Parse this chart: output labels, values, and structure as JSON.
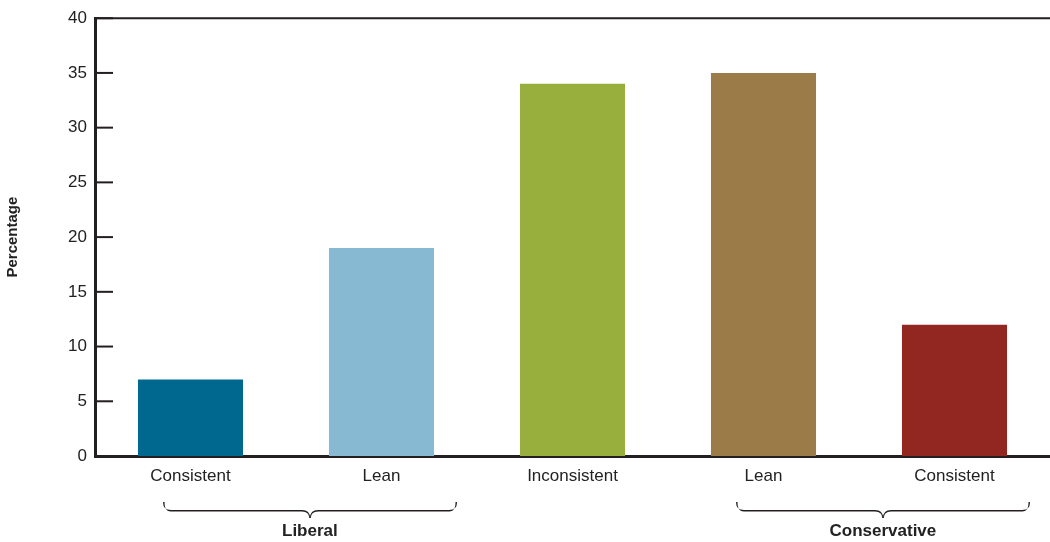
{
  "chart_data": {
    "type": "bar",
    "ylabel": "Percentage",
    "categories": [
      "Consistent",
      "Lean",
      "Inconsistent",
      "Lean",
      "Consistent"
    ],
    "values": [
      7,
      19,
      34,
      35,
      12
    ],
    "colors": [
      "#00688f",
      "#87b9d2",
      "#98ae3d",
      "#9b7c49",
      "#922620"
    ],
    "ylim": [
      0,
      40
    ],
    "yticks": [
      0,
      5,
      10,
      15,
      20,
      25,
      30,
      35,
      40
    ],
    "grid": false,
    "annotations": [
      "Liberal",
      "Conservative"
    ]
  }
}
